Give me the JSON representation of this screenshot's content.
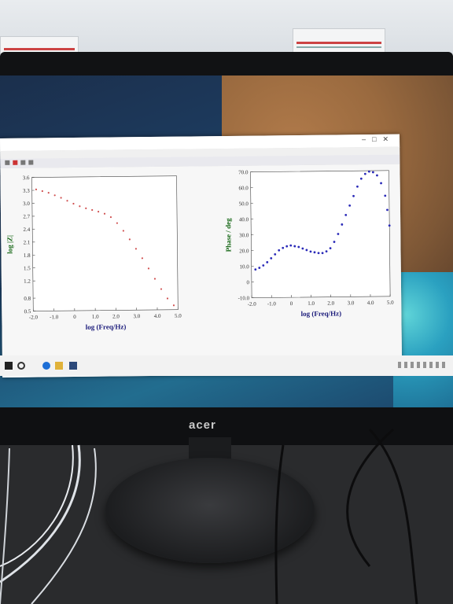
{
  "scene": {
    "monitor_brand": "acer"
  },
  "app": {
    "window_controls": [
      "–",
      "□",
      "✕"
    ],
    "status_left": "",
    "status_mid": ""
  },
  "chart_data": [
    {
      "type": "scatter",
      "title": "",
      "xlabel": "log (Freq/Hz)",
      "ylabel": "log |Z|",
      "x_ticks": [
        "-2.0",
        "-1.0",
        "0",
        "1.0",
        "2.0",
        "3.0",
        "4.0",
        "5.0"
      ],
      "y_ticks": [
        "0.5",
        "0.8",
        "1.2",
        "1.5",
        "1.8",
        "2.1",
        "2.4",
        "2.7",
        "3.0",
        "3.3",
        "3.6"
      ],
      "xlim": [
        -2.0,
        5.0
      ],
      "ylim": [
        0.5,
        3.6
      ],
      "series": [
        {
          "color": "#d05050",
          "x": [
            -1.8,
            -1.5,
            -1.2,
            -0.9,
            -0.6,
            -0.3,
            0.0,
            0.3,
            0.6,
            0.9,
            1.2,
            1.5,
            1.8,
            2.1,
            2.4,
            2.7,
            3.0,
            3.3,
            3.6,
            3.9,
            4.2,
            4.5,
            4.8
          ],
          "y": [
            3.32,
            3.28,
            3.24,
            3.18,
            3.12,
            3.05,
            2.98,
            2.92,
            2.87,
            2.83,
            2.79,
            2.74,
            2.66,
            2.52,
            2.34,
            2.14,
            1.92,
            1.7,
            1.46,
            1.22,
            0.98,
            0.76,
            0.6
          ]
        }
      ]
    },
    {
      "type": "scatter",
      "title": "",
      "xlabel": "log (Freq/Hz)",
      "ylabel": "Phase / deg",
      "x_ticks": [
        "-2.0",
        "-1.0",
        "0",
        "1.0",
        "2.0",
        "3.0",
        "4.0",
        "5.0"
      ],
      "y_ticks": [
        "-10.0",
        "0",
        "10.0",
        "20.0",
        "30.0",
        "40.0",
        "50.0",
        "60.0",
        "70.0"
      ],
      "xlim": [
        -2.0,
        5.0
      ],
      "ylim": [
        -10.0,
        70.0
      ],
      "series": [
        {
          "color": "#2a2ab8",
          "x": [
            -1.8,
            -1.6,
            -1.4,
            -1.2,
            -1.0,
            -0.8,
            -0.6,
            -0.4,
            -0.2,
            0.0,
            0.2,
            0.4,
            0.6,
            0.8,
            1.0,
            1.2,
            1.4,
            1.6,
            1.8,
            2.0,
            2.2,
            2.4,
            2.6,
            2.8,
            3.0,
            3.2,
            3.4,
            3.6,
            3.8,
            4.0,
            4.2,
            4.4,
            4.6,
            4.8,
            4.9,
            5.0
          ],
          "y": [
            8,
            9,
            10.5,
            12.5,
            15,
            17.5,
            20,
            21.5,
            22.5,
            23,
            22.5,
            22,
            21,
            20,
            19,
            18.5,
            18,
            18,
            19,
            21,
            25,
            30,
            36,
            42,
            48,
            54,
            60,
            65,
            68,
            69.5,
            69,
            67,
            62,
            54,
            45,
            35
          ]
        }
      ]
    }
  ]
}
